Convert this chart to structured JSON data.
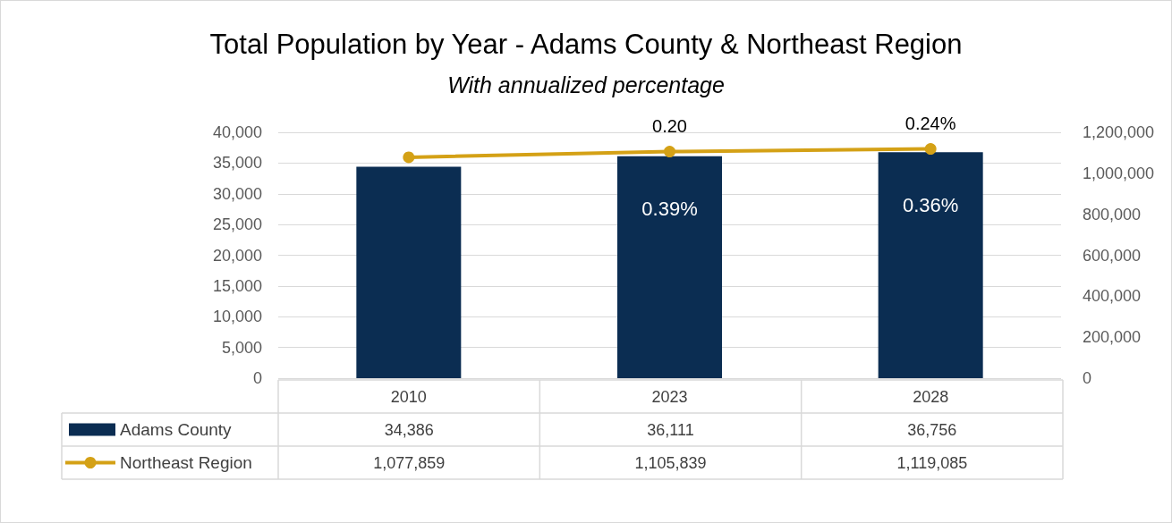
{
  "chart_data": {
    "type": "bar",
    "title": "Total Population by Year - Adams County & Northeast Region",
    "subtitle": "With annualized percentage",
    "categories": [
      "2010",
      "2023",
      "2028"
    ],
    "series": [
      {
        "name": "Adams County",
        "color": "#0b2d52",
        "values": [
          34386,
          36111,
          36756
        ],
        "value_labels": [
          "34,386",
          "36,111",
          "36,756"
        ]
      },
      {
        "name": "Northeast Region",
        "type": "line",
        "axis": "y2",
        "color": "#d4a116",
        "values": [
          1077859,
          1105839,
          1119085
        ],
        "value_labels": [
          "1,077,859",
          "1,105,839",
          "1,119,085"
        ]
      }
    ],
    "annotations": [
      {
        "text": "0.39%",
        "x": "2023",
        "y": 36111
      },
      {
        "text": "0.36%",
        "x": "2028",
        "y": 36756
      },
      "0.20",
      "0.24%"
    ],
    "ylim": [
      0,
      40000
    ],
    "yticks": [
      0,
      {
        "value": 5000,
        "label": "5,000"
      },
      {
        "value": 10000,
        "label": "10,000"
      },
      {
        "value": 15000,
        "label": "15,000"
      },
      {
        "value": 20000,
        "label": "20,000"
      },
      {
        "value": 25000,
        "label": "25,000"
      },
      {
        "value": 30000,
        "label": "30,000"
      },
      {
        "value": 35000,
        "label": "35,000"
      },
      {
        "value": 40000,
        "label": "40,000"
      }
    ],
    "y2lim": [
      0,
      1200000
    ],
    "y2ticks": [
      0,
      {
        "value": 200000,
        "label": "200,000"
      },
      {
        "value": 400000,
        "label": "400,000"
      },
      {
        "value": 600000,
        "label": "600,000"
      },
      {
        "value": 800000,
        "label": "800,000"
      },
      {
        "value": 1000000,
        "label": "1,000,000"
      },
      {
        "value": 1200000,
        "label": "1,200,000"
      }
    ],
    "grid": "y",
    "data_labels": true,
    "legend": "bottom",
    "marker": "circle"
  }
}
